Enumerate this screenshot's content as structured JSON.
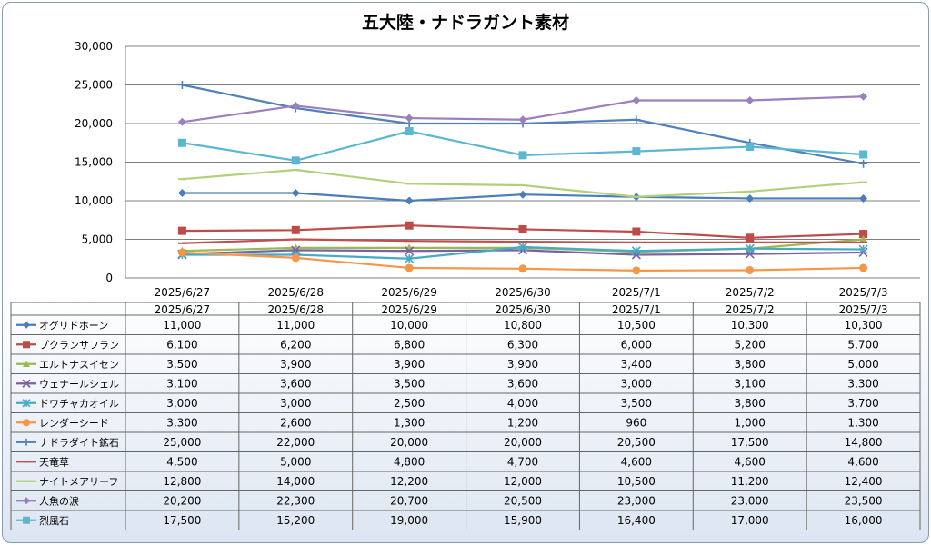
{
  "chart_data": {
    "type": "line",
    "title": "五大陸・ナドラガント素材",
    "xlabel": "",
    "ylabel": "",
    "ylim": [
      0,
      30000
    ],
    "yticks": [
      "0",
      "5,000",
      "10,000",
      "15,000",
      "20,000",
      "25,000",
      "30,000"
    ],
    "grid": true,
    "legend": "data-table",
    "categories": [
      "2025/6/27",
      "2025/6/28",
      "2025/6/29",
      "2025/6/30",
      "2025/7/1",
      "2025/7/2",
      "2025/7/3"
    ],
    "series": [
      {
        "name": "オグリドホーン",
        "color": "#4a7ebb",
        "marker": "diamond",
        "values": [
          11000,
          11000,
          10000,
          10800,
          10500,
          10300,
          10300
        ],
        "labels": [
          "11,000",
          "11,000",
          "10,000",
          "10,800",
          "10,500",
          "10,300",
          "10,300"
        ]
      },
      {
        "name": "プクランサフラン",
        "color": "#be4b48",
        "marker": "square",
        "values": [
          6100,
          6200,
          6800,
          6300,
          6000,
          5200,
          5700
        ],
        "labels": [
          "6,100",
          "6,200",
          "6,800",
          "6,300",
          "6,000",
          "5,200",
          "5,700"
        ]
      },
      {
        "name": "エルトナスイセン",
        "color": "#98b954",
        "marker": "triangle",
        "values": [
          3500,
          3900,
          3900,
          3900,
          3400,
          3800,
          5000
        ],
        "labels": [
          "3,500",
          "3,900",
          "3,900",
          "3,900",
          "3,400",
          "3,800",
          "5,000"
        ]
      },
      {
        "name": "ウェナールシェル",
        "color": "#7d60a0",
        "marker": "x",
        "values": [
          3100,
          3600,
          3500,
          3600,
          3000,
          3100,
          3300
        ],
        "labels": [
          "3,100",
          "3,600",
          "3,500",
          "3,600",
          "3,000",
          "3,100",
          "3,300"
        ]
      },
      {
        "name": "ドワチャカオイル",
        "color": "#46aac5",
        "marker": "star",
        "values": [
          3000,
          3000,
          2500,
          4000,
          3500,
          3800,
          3700
        ],
        "labels": [
          "3,000",
          "3,000",
          "2,500",
          "4,000",
          "3,500",
          "3,800",
          "3,700"
        ]
      },
      {
        "name": "レンダーシード",
        "color": "#f79646",
        "marker": "circle",
        "values": [
          3300,
          2600,
          1300,
          1200,
          960,
          1000,
          1300
        ],
        "labels": [
          "3,300",
          "2,600",
          "1,300",
          "1,200",
          "960",
          "1,000",
          "1,300"
        ]
      },
      {
        "name": "ナドラダイト鉱石",
        "color": "#4f81bd",
        "marker": "plus",
        "values": [
          25000,
          22000,
          20000,
          20000,
          20500,
          17500,
          14800
        ],
        "labels": [
          "25,000",
          "22,000",
          "20,000",
          "20,000",
          "20,500",
          "17,500",
          "14,800"
        ]
      },
      {
        "name": "天竜草",
        "color": "#c0504d",
        "marker": "dash",
        "values": [
          4500,
          5000,
          4800,
          4700,
          4600,
          4600,
          4600
        ],
        "labels": [
          "4,500",
          "5,000",
          "4,800",
          "4,700",
          "4,600",
          "4,600",
          "4,600"
        ]
      },
      {
        "name": "ナイトメアリーフ",
        "color": "#b3cf7a",
        "marker": "dash",
        "values": [
          12800,
          14000,
          12200,
          12000,
          10500,
          11200,
          12400
        ],
        "labels": [
          "12,800",
          "14,000",
          "12,200",
          "12,000",
          "10,500",
          "11,200",
          "12,400"
        ]
      },
      {
        "name": "人魚の涙",
        "color": "#9b7fbe",
        "marker": "diamond",
        "values": [
          20200,
          22300,
          20700,
          20500,
          23000,
          23000,
          23500
        ],
        "labels": [
          "20,200",
          "22,300",
          "20,700",
          "20,500",
          "23,000",
          "23,000",
          "23,500"
        ]
      },
      {
        "name": "烈風石",
        "color": "#5bb7d0",
        "marker": "square",
        "values": [
          17500,
          15200,
          19000,
          15900,
          16400,
          17000,
          16000
        ],
        "labels": [
          "17,500",
          "15,200",
          "19,000",
          "15,900",
          "16,400",
          "17,000",
          "16,000"
        ]
      }
    ]
  }
}
